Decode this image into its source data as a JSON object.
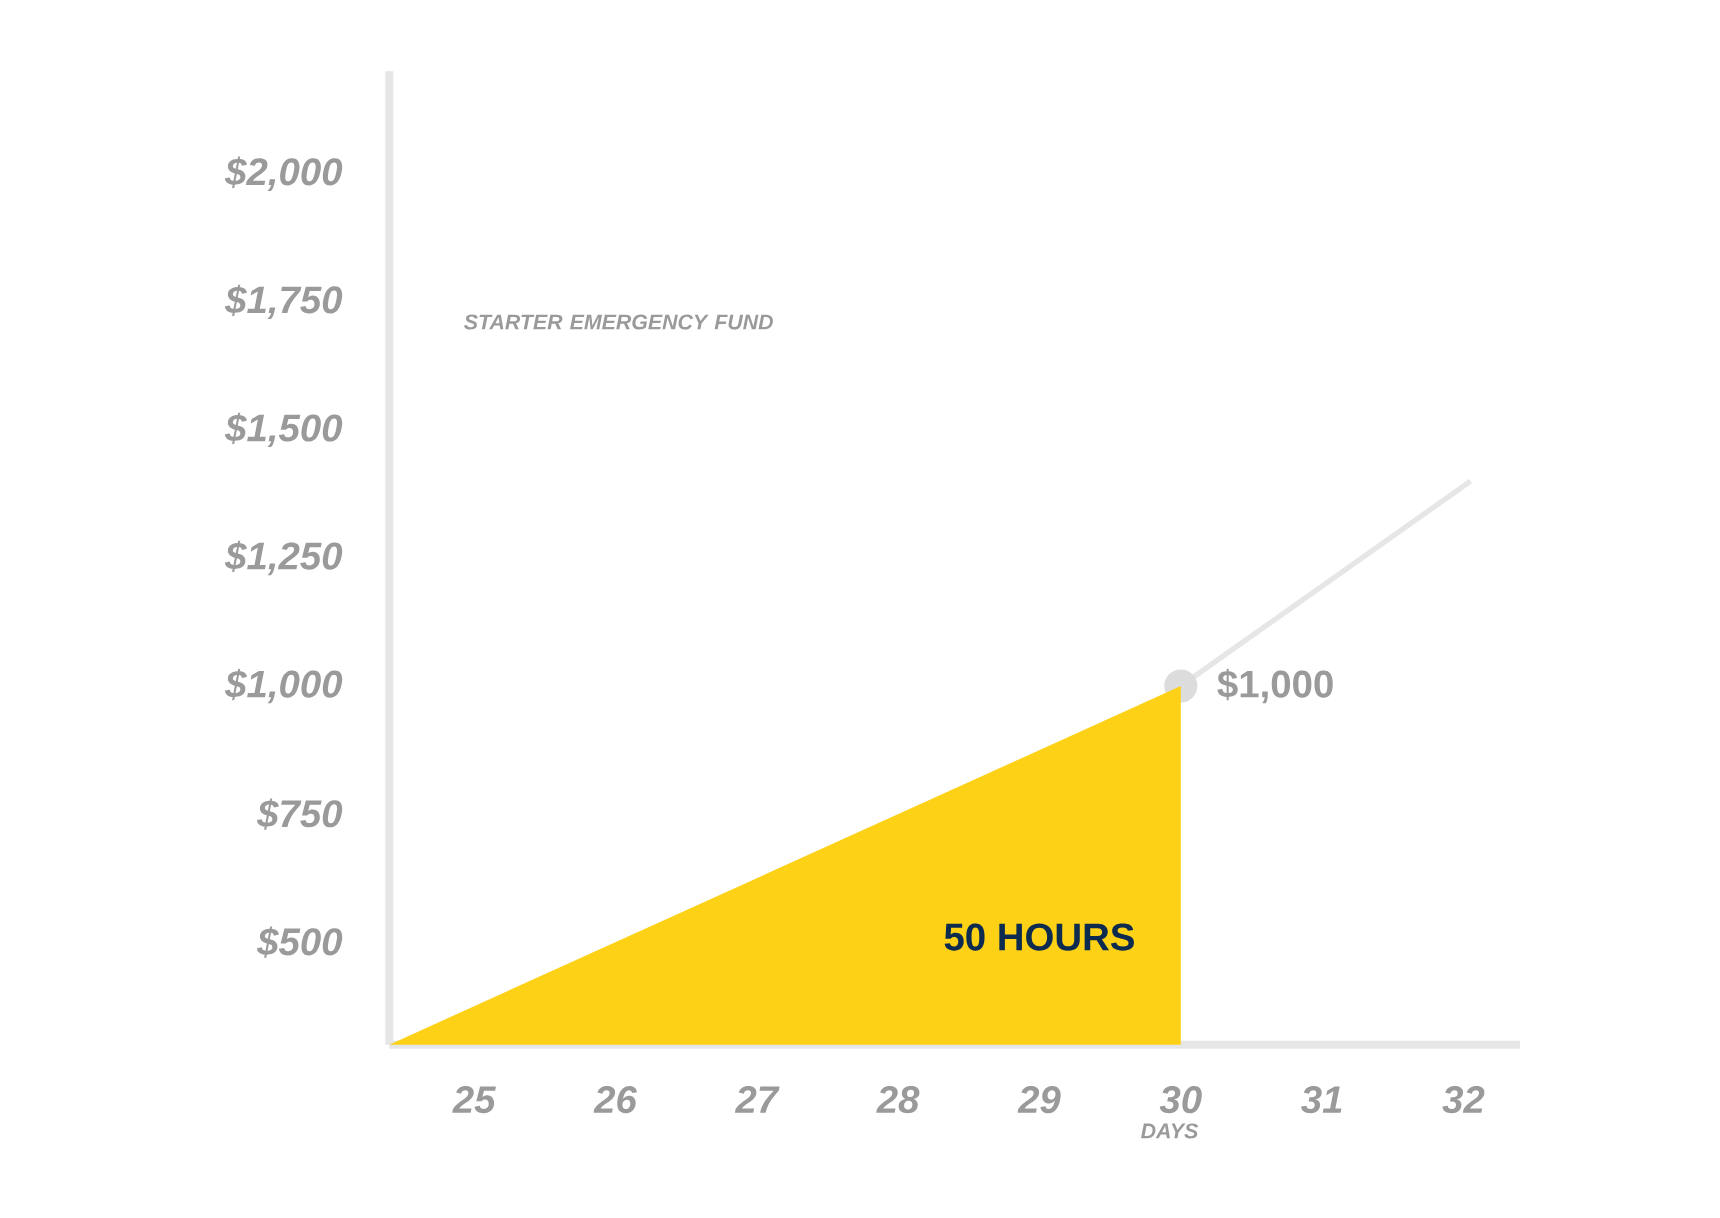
{
  "chart_data": {
    "type": "area",
    "xlabel": "DAYS",
    "xlim": [
      24.4,
      32.4
    ],
    "ylim": [
      300,
      2200
    ],
    "xticks": [
      25,
      26,
      27,
      28,
      29,
      30,
      31,
      32
    ],
    "yticks": [
      {
        "value": 500,
        "label": "$500"
      },
      {
        "value": 750,
        "label": "$750"
      },
      {
        "value": 1000,
        "label": "$1,000"
      },
      {
        "value": 1250,
        "label": "$1,250"
      },
      {
        "value": 1500,
        "label": "$1,500"
      },
      {
        "value": 1750,
        "label": "$1,750"
      },
      {
        "value": 2000,
        "label": "$2,000"
      }
    ],
    "series": [
      {
        "color": "#fcd116",
        "x": [
          24.4,
          30
        ],
        "values": [
          300,
          1000
        ]
      },
      {
        "type": "line",
        "color": "#e6e6e6",
        "x": [
          30,
          32.05
        ],
        "values": [
          1000,
          1400
        ]
      },
      {
        "type": "scatter",
        "marker": "circle",
        "color": "#dcdcdc",
        "x": [
          30
        ],
        "values": [
          1000
        ]
      }
    ],
    "annotations": [
      "50 HOURS",
      "STARTER EMERGENCY FUND",
      {
        "text": "$1,000",
        "x": 30,
        "y": 1000
      }
    ]
  }
}
